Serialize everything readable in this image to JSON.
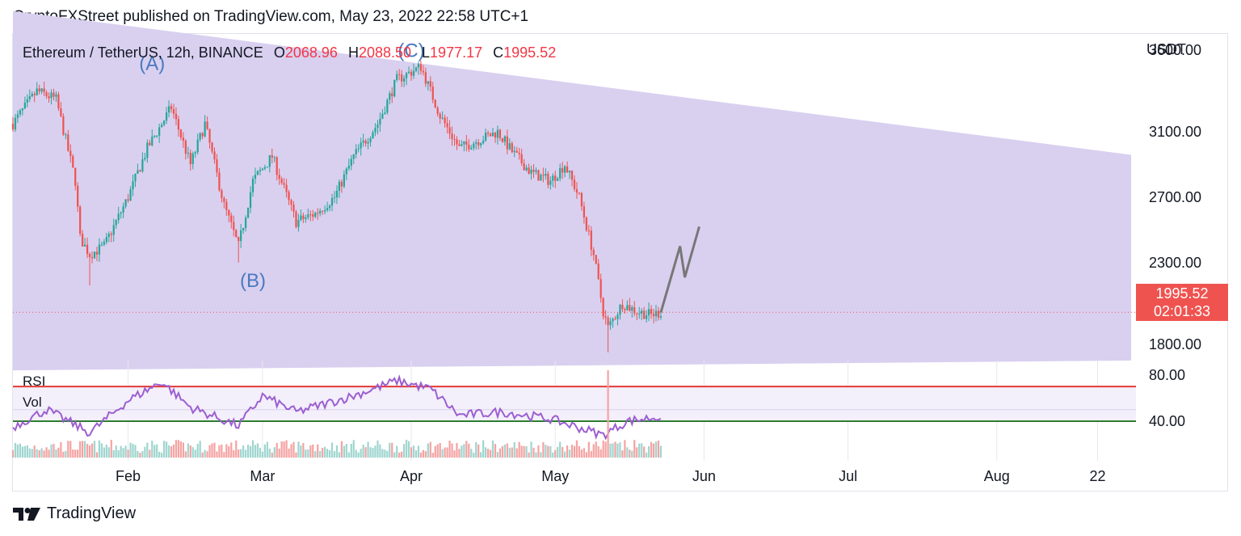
{
  "header": {
    "publisher_line": "CryptoFXStreet published on TradingView.com, May 23, 2022 22:58 UTC+1"
  },
  "symbol": {
    "name": "Ethereum / TetherUS, 12h, BINANCE",
    "open_label": "O",
    "open": "2068.96",
    "high_label": "H",
    "high": "2088.50",
    "low_label": "L",
    "low": "1977.17",
    "close_label": "C",
    "close": "1995.52"
  },
  "price_axis": {
    "unit": "USDT",
    "current_price": "1995.52",
    "countdown": "02:01:33"
  },
  "indicators": {
    "rsi_label": "RSI",
    "vol_label": "Vol"
  },
  "footer": {
    "brand": "TradingView"
  },
  "colors": {
    "up": "#26a69a",
    "down": "#ef5350",
    "channel": "#d9d0f0",
    "rsi_line": "#9c5fd0",
    "rsi_upper": "#e53935",
    "rsi_lower": "#2e7d32",
    "projection": "#777777",
    "wave_label": "#4a7ac0"
  },
  "chart_data": {
    "type": "candlestick",
    "title": "",
    "y_ticks": [
      "3600.00",
      "3100.00",
      "2700.00",
      "2300.00",
      "1800.00"
    ],
    "y_tick_values": [
      3600,
      3100,
      2700,
      2300,
      1800
    ],
    "x_ticks": [
      "Feb",
      "Mar",
      "Apr",
      "May",
      "Jun",
      "Jul",
      "Aug",
      "22"
    ],
    "x_tick_dates": [
      "2022-02-01",
      "2022-03-01",
      "2022-04-01",
      "2022-05-01",
      "2022-06-01",
      "2022-07-01",
      "2022-08-01",
      "2022-08-22"
    ],
    "x_range": [
      "2022-01-08",
      "2022-08-30"
    ],
    "y_range": [
      1700,
      3700
    ],
    "price_path": [
      [
        "2022-01-08",
        3150
      ],
      [
        "2022-01-13",
        3350
      ],
      [
        "2022-01-17",
        3300
      ],
      [
        "2022-01-21",
        2800
      ],
      [
        "2022-01-22",
        2450
      ],
      [
        "2022-01-24",
        2350
      ],
      [
        "2022-01-27",
        2400
      ],
      [
        "2022-02-01",
        2700
      ],
      [
        "2022-02-05",
        3000
      ],
      [
        "2022-02-10",
        3250
      ],
      [
        "2022-02-14",
        2900
      ],
      [
        "2022-02-17",
        3150
      ],
      [
        "2022-02-21",
        2650
      ],
      [
        "2022-02-24",
        2400
      ],
      [
        "2022-02-27",
        2800
      ],
      [
        "2022-03-03",
        2950
      ],
      [
        "2022-03-08",
        2550
      ],
      [
        "2022-03-12",
        2600
      ],
      [
        "2022-03-16",
        2700
      ],
      [
        "2022-03-20",
        2950
      ],
      [
        "2022-03-25",
        3150
      ],
      [
        "2022-03-29",
        3420
      ],
      [
        "2022-04-03",
        3500
      ],
      [
        "2022-04-07",
        3200
      ],
      [
        "2022-04-11",
        3000
      ],
      [
        "2022-04-15",
        3050
      ],
      [
        "2022-04-19",
        3100
      ],
      [
        "2022-04-22",
        2980
      ],
      [
        "2022-04-26",
        2850
      ],
      [
        "2022-04-30",
        2800
      ],
      [
        "2022-05-03",
        2900
      ],
      [
        "2022-05-06",
        2700
      ],
      [
        "2022-05-09",
        2350
      ],
      [
        "2022-05-11",
        2000
      ],
      [
        "2022-05-12",
        1900
      ],
      [
        "2022-05-15",
        2050
      ],
      [
        "2022-05-18",
        2000
      ],
      [
        "2022-05-21",
        1980
      ],
      [
        "2022-05-23",
        1995.52
      ]
    ],
    "price_extremes": [
      [
        "2022-01-24",
        2160,
        1
      ],
      [
        "2022-02-24",
        2300,
        1
      ],
      [
        "2022-05-12",
        1750,
        1
      ]
    ],
    "channel": {
      "upper": [
        [
          "2022-01-08",
          3840
        ],
        [
          "2022-08-29",
          2960
        ]
      ],
      "lower": [
        [
          "2022-01-08",
          1640
        ],
        [
          "2022-08-29",
          1700
        ]
      ]
    },
    "projection_path": [
      [
        "2022-05-23",
        1995
      ],
      [
        "2022-05-27",
        2400
      ],
      [
        "2022-05-28",
        2210
      ],
      [
        "2022-05-31",
        2520
      ]
    ],
    "wave_labels": [
      {
        "text": "(A)",
        "date": "2022-02-06",
        "price": 3480
      },
      {
        "text": "(B)",
        "date": "2022-02-27",
        "price": 2150
      },
      {
        "text": "(C)",
        "date": "2022-04-01",
        "price": 3560
      }
    ],
    "rsi": {
      "label": "RSI",
      "ticks": [
        "80.00",
        "40.00"
      ],
      "tick_values": [
        80,
        40
      ],
      "upper_band": 70,
      "lower_band": 40,
      "values": [
        [
          "2022-01-08",
          35
        ],
        [
          "2022-01-15",
          50
        ],
        [
          "2022-01-24",
          30
        ],
        [
          "2022-02-01",
          58
        ],
        [
          "2022-02-08",
          74
        ],
        [
          "2022-02-14",
          52
        ],
        [
          "2022-02-24",
          36
        ],
        [
          "2022-03-01",
          62
        ],
        [
          "2022-03-08",
          48
        ],
        [
          "2022-03-20",
          62
        ],
        [
          "2022-03-29",
          75
        ],
        [
          "2022-04-05",
          68
        ],
        [
          "2022-04-11",
          45
        ],
        [
          "2022-04-20",
          48
        ],
        [
          "2022-04-30",
          42
        ],
        [
          "2022-05-11",
          28
        ],
        [
          "2022-05-16",
          40
        ],
        [
          "2022-05-23",
          44
        ]
      ]
    },
    "volume": {
      "label": "Vol",
      "spike_date": "2022-05-12"
    }
  }
}
